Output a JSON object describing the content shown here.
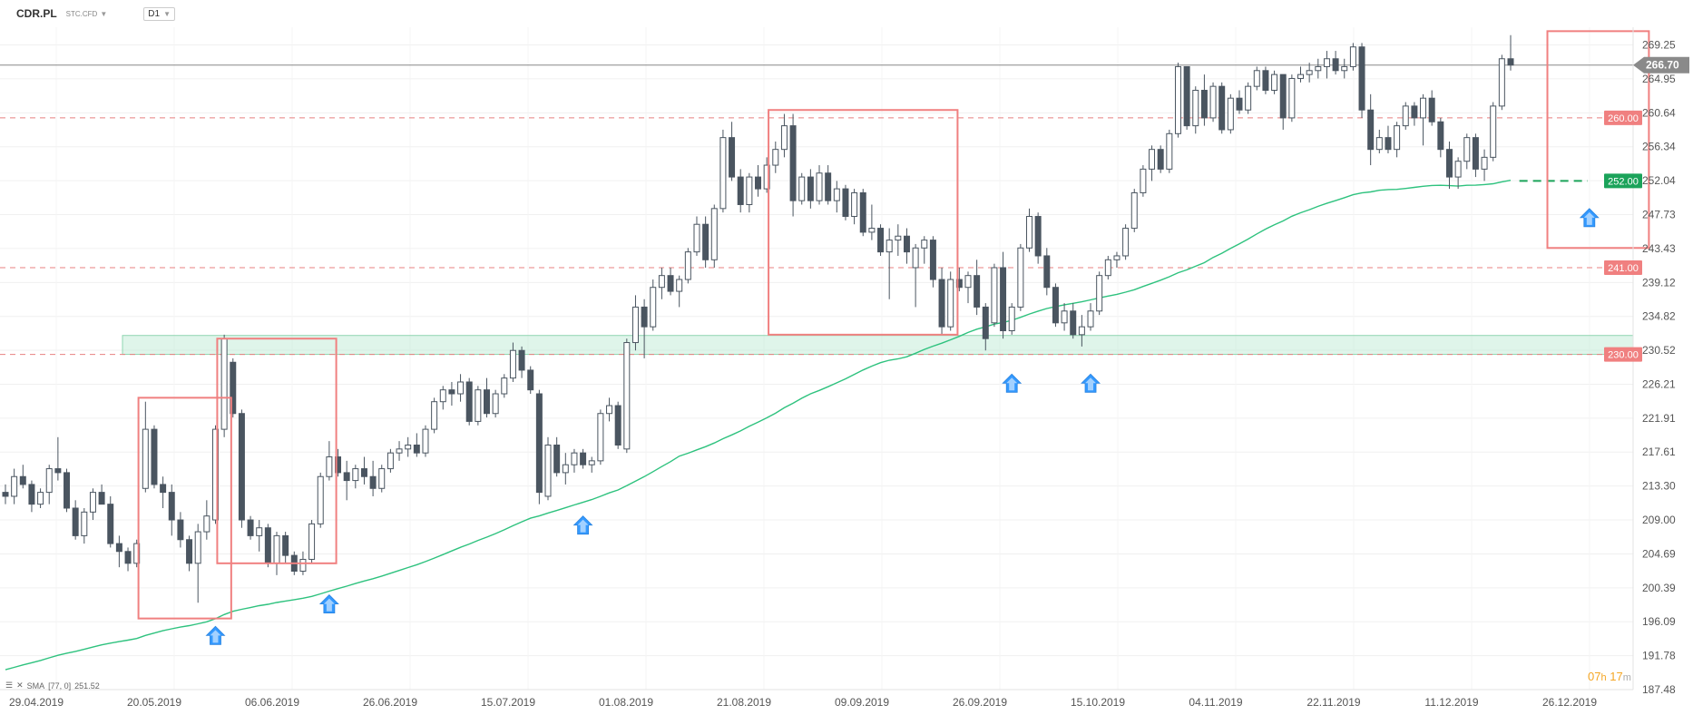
{
  "toolbar": {
    "symbol": "CDR.PL",
    "subtype": "STC.CFD",
    "timeframe": "D1"
  },
  "indicator": {
    "label": "SMA",
    "params": "[77, 0]",
    "value": "251.52"
  },
  "countdown": {
    "h": "07",
    "h_unit": "h",
    "m": "17",
    "m_unit": "m"
  },
  "colors": {
    "bull_body": "#ffffff",
    "bear_body": "#4a5560",
    "sma": "#2ec27e",
    "level_line": "#e88080",
    "box": "#f08080",
    "arrow": "#3399ff",
    "support_zone": "#b9e8d0",
    "current_price": "#888888"
  },
  "chart_data": {
    "type": "candlestick",
    "y_ticks": [
      "269.25",
      "264.95",
      "260.64",
      "256.34",
      "252.04",
      "247.73",
      "243.43",
      "239.12",
      "234.82",
      "230.52",
      "226.21",
      "221.91",
      "217.61",
      "213.30",
      "209.00",
      "204.69",
      "200.39",
      "196.09",
      "191.78",
      "187.48"
    ],
    "ylim": [
      187.48,
      271.5
    ],
    "x_labels": [
      "29.04.2019",
      "20.05.2019",
      "06.06.2019",
      "26.06.2019",
      "15.07.2019",
      "01.08.2019",
      "21.08.2019",
      "09.09.2019",
      "26.09.2019",
      "15.10.2019",
      "04.11.2019",
      "22.11.2019",
      "11.12.2019",
      "26.12.2019"
    ],
    "current_price": {
      "label": "266.70",
      "value": 266.7
    },
    "levels": [
      {
        "label": "260.00",
        "value": 260.0
      },
      {
        "label": "241.00",
        "value": 241.0
      },
      {
        "label": "230.00",
        "value": 230.0
      }
    ],
    "target_level": {
      "label": "252.00",
      "value": 252.0
    },
    "support_zone": [
      230.0,
      232.4
    ],
    "sma": {
      "name": "SMA [77, 0]",
      "last": 251.52
    },
    "candles": [
      [
        212.5,
        213.5,
        211.0,
        212.0
      ],
      [
        212.0,
        215.5,
        211.0,
        214.5
      ],
      [
        214.5,
        216.0,
        213.0,
        213.5
      ],
      [
        213.5,
        214.0,
        210.0,
        211.0
      ],
      [
        211.0,
        213.0,
        210.5,
        212.5
      ],
      [
        212.5,
        216.0,
        211.0,
        215.5
      ],
      [
        215.5,
        219.5,
        214.0,
        215.0
      ],
      [
        215.0,
        215.5,
        210.0,
        210.5
      ],
      [
        210.5,
        211.5,
        206.5,
        207.0
      ],
      [
        207.0,
        210.5,
        206.0,
        210.0
      ],
      [
        210.0,
        213.0,
        209.0,
        212.5
      ],
      [
        212.5,
        213.5,
        211.5,
        211.0
      ],
      [
        211.0,
        212.0,
        205.5,
        206.0
      ],
      [
        206.0,
        207.0,
        203.0,
        205.0
      ],
      [
        205.0,
        205.5,
        202.5,
        203.5
      ],
      [
        203.5,
        206.5,
        203.0,
        206.0
      ],
      [
        213.0,
        224.0,
        212.5,
        220.5
      ],
      [
        220.5,
        221.0,
        213.0,
        213.5
      ],
      [
        213.5,
        214.5,
        210.5,
        212.5
      ],
      [
        212.5,
        213.5,
        207.0,
        209.0
      ],
      [
        209.0,
        210.0,
        205.5,
        206.5
      ],
      [
        206.5,
        207.0,
        202.5,
        203.5
      ],
      [
        203.5,
        208.5,
        198.5,
        207.5
      ],
      [
        207.5,
        211.5,
        206.5,
        209.5
      ],
      [
        209.0,
        221.0,
        208.5,
        220.5
      ],
      [
        220.5,
        232.5,
        219.5,
        232.0
      ],
      [
        229.0,
        229.5,
        222.0,
        222.5
      ],
      [
        222.5,
        223.0,
        208.0,
        209.0
      ],
      [
        209.0,
        209.5,
        206.5,
        207.0
      ],
      [
        207.0,
        209.0,
        205.0,
        208.0
      ],
      [
        208.0,
        208.5,
        203.0,
        203.5
      ],
      [
        203.5,
        207.5,
        202.0,
        207.0
      ],
      [
        207.0,
        207.5,
        203.5,
        204.5
      ],
      [
        204.5,
        205.0,
        202.0,
        202.5
      ],
      [
        202.5,
        205.0,
        202.0,
        204.0
      ],
      [
        204.0,
        209.0,
        203.5,
        208.5
      ],
      [
        208.5,
        215.0,
        208.0,
        214.5
      ],
      [
        214.5,
        219.0,
        214.0,
        217.0
      ],
      [
        217.0,
        218.0,
        214.5,
        215.0
      ],
      [
        215.0,
        216.5,
        211.5,
        214.0
      ],
      [
        214.0,
        216.0,
        213.0,
        215.5
      ],
      [
        215.5,
        217.0,
        213.5,
        214.5
      ],
      [
        214.5,
        216.5,
        212.0,
        213.0
      ],
      [
        213.0,
        216.0,
        212.5,
        215.5
      ],
      [
        215.5,
        218.0,
        215.0,
        217.5
      ],
      [
        217.5,
        219.0,
        216.5,
        218.0
      ],
      [
        218.0,
        219.5,
        217.0,
        218.5
      ],
      [
        218.5,
        220.0,
        217.0,
        217.5
      ],
      [
        217.5,
        221.0,
        217.0,
        220.5
      ],
      [
        220.5,
        224.5,
        220.0,
        224.0
      ],
      [
        224.0,
        226.0,
        223.0,
        225.5
      ],
      [
        225.5,
        226.5,
        223.5,
        225.0
      ],
      [
        225.0,
        227.5,
        224.0,
        226.5
      ],
      [
        226.5,
        227.0,
        221.0,
        221.5
      ],
      [
        221.5,
        226.0,
        221.0,
        225.5
      ],
      [
        225.5,
        227.0,
        222.0,
        222.5
      ],
      [
        222.5,
        225.5,
        222.0,
        225.0
      ],
      [
        225.0,
        227.5,
        224.5,
        227.0
      ],
      [
        227.0,
        231.5,
        226.5,
        230.5
      ],
      [
        230.5,
        231.0,
        227.0,
        228.0
      ],
      [
        228.0,
        228.5,
        225.0,
        225.5
      ],
      [
        225.0,
        225.5,
        211.0,
        212.5
      ],
      [
        212.0,
        219.5,
        211.5,
        218.5
      ],
      [
        218.5,
        219.5,
        214.5,
        215.0
      ],
      [
        215.0,
        217.5,
        213.5,
        216.0
      ],
      [
        216.0,
        218.0,
        215.0,
        217.5
      ],
      [
        217.5,
        218.0,
        215.5,
        216.0
      ],
      [
        216.0,
        217.0,
        215.0,
        216.5
      ],
      [
        216.5,
        223.0,
        216.0,
        222.5
      ],
      [
        222.5,
        224.5,
        221.5,
        223.5
      ],
      [
        223.5,
        224.0,
        218.0,
        218.5
      ],
      [
        218.0,
        232.0,
        217.5,
        231.5
      ],
      [
        231.5,
        237.5,
        230.5,
        236.0
      ],
      [
        236.0,
        237.0,
        229.5,
        233.5
      ],
      [
        233.5,
        239.5,
        233.0,
        238.5
      ],
      [
        238.5,
        241.0,
        237.0,
        240.0
      ],
      [
        240.0,
        241.0,
        237.5,
        238.0
      ],
      [
        238.0,
        240.0,
        236.0,
        239.5
      ],
      [
        239.5,
        243.5,
        239.0,
        243.0
      ],
      [
        243.0,
        247.5,
        242.5,
        246.5
      ],
      [
        246.5,
        247.5,
        241.0,
        242.0
      ],
      [
        242.0,
        249.0,
        241.0,
        248.5
      ],
      [
        248.5,
        258.5,
        248.0,
        257.5
      ],
      [
        257.5,
        259.5,
        252.0,
        252.5
      ],
      [
        252.5,
        253.5,
        248.0,
        249.0
      ],
      [
        249.0,
        253.0,
        248.0,
        252.5
      ],
      [
        252.5,
        254.0,
        250.0,
        251.0
      ],
      [
        251.0,
        255.0,
        250.5,
        254.0
      ],
      [
        254.0,
        257.0,
        253.0,
        256.0
      ],
      [
        256.0,
        260.5,
        255.0,
        259.0
      ],
      [
        259.0,
        260.5,
        247.5,
        249.5
      ],
      [
        249.5,
        253.0,
        249.0,
        252.5
      ],
      [
        252.5,
        253.5,
        248.5,
        249.5
      ],
      [
        249.5,
        254.0,
        249.0,
        253.0
      ],
      [
        253.0,
        254.0,
        249.0,
        249.5
      ],
      [
        249.5,
        252.0,
        248.0,
        251.0
      ],
      [
        251.0,
        251.5,
        247.0,
        247.5
      ],
      [
        247.5,
        251.0,
        246.5,
        250.5
      ],
      [
        250.5,
        251.0,
        245.0,
        245.5
      ],
      [
        245.5,
        249.0,
        244.5,
        246.0
      ],
      [
        246.0,
        246.5,
        242.5,
        243.0
      ],
      [
        243.0,
        246.0,
        237.0,
        244.5
      ],
      [
        244.5,
        246.5,
        242.5,
        245.0
      ],
      [
        245.0,
        246.0,
        241.5,
        243.0
      ],
      [
        241.0,
        244.0,
        236.0,
        243.5
      ],
      [
        243.5,
        245.0,
        241.5,
        244.5
      ],
      [
        244.5,
        245.0,
        238.5,
        239.5
      ],
      [
        239.5,
        241.0,
        232.5,
        233.5
      ],
      [
        233.5,
        240.5,
        233.0,
        239.5
      ],
      [
        239.5,
        241.0,
        238.0,
        238.5
      ],
      [
        238.5,
        240.5,
        236.5,
        240.0
      ],
      [
        240.0,
        242.0,
        235.0,
        236.0
      ],
      [
        236.0,
        236.5,
        230.5,
        232.0
      ],
      [
        234.0,
        241.5,
        233.5,
        241.0
      ],
      [
        241.0,
        243.0,
        232.0,
        233.0
      ],
      [
        233.0,
        236.5,
        232.5,
        236.0
      ],
      [
        236.0,
        244.0,
        235.5,
        243.5
      ],
      [
        243.5,
        248.5,
        243.0,
        247.5
      ],
      [
        247.5,
        248.0,
        241.5,
        242.5
      ],
      [
        242.5,
        243.5,
        237.5,
        238.5
      ],
      [
        238.5,
        239.0,
        233.5,
        234.0
      ],
      [
        234.0,
        236.5,
        233.0,
        235.5
      ],
      [
        235.5,
        236.5,
        232.0,
        232.5
      ],
      [
        232.5,
        235.0,
        231.0,
        233.5
      ],
      [
        233.5,
        236.5,
        233.0,
        235.5
      ],
      [
        235.5,
        240.5,
        235.0,
        240.0
      ],
      [
        240.0,
        242.5,
        239.5,
        242.0
      ],
      [
        242.0,
        243.0,
        241.0,
        242.5
      ],
      [
        242.5,
        246.5,
        242.0,
        246.0
      ],
      [
        246.0,
        251.0,
        245.5,
        250.5
      ],
      [
        250.5,
        254.0,
        250.0,
        253.5
      ],
      [
        253.5,
        256.5,
        252.0,
        256.0
      ],
      [
        256.0,
        256.5,
        253.0,
        253.5
      ],
      [
        253.5,
        258.5,
        253.0,
        258.0
      ],
      [
        258.0,
        267.0,
        257.5,
        266.5
      ],
      [
        266.5,
        266.5,
        258.5,
        259.0
      ],
      [
        259.0,
        264.0,
        258.0,
        263.5
      ],
      [
        263.5,
        265.5,
        259.0,
        260.0
      ],
      [
        260.0,
        264.5,
        259.5,
        264.0
      ],
      [
        264.0,
        264.5,
        258.0,
        258.5
      ],
      [
        258.5,
        263.0,
        258.0,
        262.5
      ],
      [
        262.5,
        263.5,
        260.5,
        261.0
      ],
      [
        261.0,
        264.5,
        260.5,
        264.0
      ],
      [
        264.0,
        266.5,
        263.5,
        266.0
      ],
      [
        266.0,
        266.5,
        263.0,
        263.5
      ],
      [
        263.5,
        266.0,
        263.0,
        265.5
      ],
      [
        265.5,
        265.5,
        258.5,
        260.0
      ],
      [
        260.0,
        265.5,
        259.5,
        265.0
      ],
      [
        265.0,
        266.5,
        264.5,
        265.5
      ],
      [
        265.5,
        267.0,
        264.5,
        266.0
      ],
      [
        266.0,
        267.5,
        265.0,
        266.5
      ],
      [
        266.5,
        268.5,
        265.0,
        267.5
      ],
      [
        267.5,
        268.5,
        265.5,
        266.0
      ],
      [
        266.0,
        267.5,
        265.0,
        266.5
      ],
      [
        266.5,
        269.5,
        266.0,
        269.0
      ],
      [
        269.0,
        269.5,
        260.0,
        261.0
      ],
      [
        261.0,
        263.0,
        254.0,
        256.0
      ],
      [
        256.0,
        258.5,
        255.5,
        257.5
      ],
      [
        257.5,
        259.0,
        255.5,
        256.0
      ],
      [
        256.0,
        259.5,
        255.0,
        259.0
      ],
      [
        259.0,
        262.0,
        258.5,
        261.5
      ],
      [
        261.5,
        262.0,
        259.0,
        260.0
      ],
      [
        260.0,
        263.0,
        256.5,
        262.5
      ],
      [
        262.5,
        263.5,
        259.0,
        259.5
      ],
      [
        259.5,
        260.0,
        255.0,
        256.0
      ],
      [
        256.0,
        257.0,
        251.0,
        252.5
      ],
      [
        252.5,
        255.0,
        251.0,
        254.5
      ],
      [
        254.5,
        258.0,
        253.5,
        257.5
      ],
      [
        257.5,
        258.0,
        252.5,
        253.5
      ],
      [
        253.5,
        256.0,
        252.0,
        255.0
      ],
      [
        255.0,
        262.0,
        254.5,
        261.5
      ],
      [
        261.5,
        268.0,
        261.0,
        267.5
      ],
      [
        267.5,
        270.5,
        266.0,
        266.7
      ]
    ],
    "annotation_boxes": [
      {
        "from_index": 16,
        "to_index": 25,
        "low": 196.5,
        "high": 224.5
      },
      {
        "from_index": 25,
        "to_index": 37,
        "low": 203.5,
        "high": 232.0
      },
      {
        "from_index": 88,
        "to_index": 108,
        "low": 232.5,
        "high": 261.0
      },
      {
        "from_index": 177,
        "to_index": 187,
        "low": 243.5,
        "high": 271.0
      }
    ],
    "arrows": [
      {
        "index": 24,
        "value": 195.5
      },
      {
        "index": 37,
        "value": 199.5
      },
      {
        "index": 66,
        "value": 209.5
      },
      {
        "index": 115,
        "value": 227.5
      },
      {
        "index": 124,
        "value": 227.5
      },
      {
        "index": 181,
        "value": 248.5
      }
    ]
  }
}
